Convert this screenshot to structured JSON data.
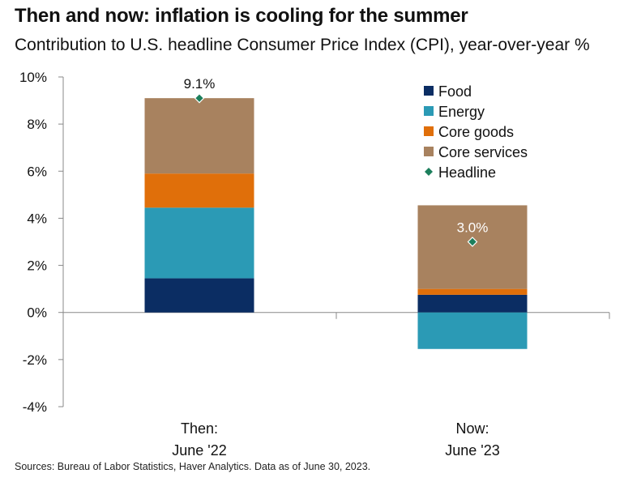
{
  "title": "Then and now: inflation is cooling for the summer",
  "subtitle": "Contribution to U.S. headline Consumer Price Index (CPI), year-over-year %",
  "source": "Sources: Bureau of Labor Statistics, Haver Analytics. Data as of June 30, 2023.",
  "chart_data": {
    "type": "bar",
    "stacked": true,
    "categories": [
      [
        "Then:",
        "June '22"
      ],
      [
        "Now:",
        "June '23"
      ]
    ],
    "series": [
      {
        "name": "Food",
        "color": "#0b2d63",
        "values": [
          1.45,
          0.75
        ]
      },
      {
        "name": "Energy",
        "color": "#2b9ab5",
        "values": [
          3.0,
          -1.55
        ]
      },
      {
        "name": "Core goods",
        "color": "#e06f0a",
        "values": [
          1.45,
          0.25
        ]
      },
      {
        "name": "Core services",
        "color": "#a8825f",
        "values": [
          3.2,
          3.55
        ]
      }
    ],
    "headline": {
      "name": "Headline",
      "color": "#1c7f5c",
      "values": [
        9.1,
        3.0
      ],
      "labels": [
        "9.1%",
        "3.0%"
      ]
    },
    "yticks": [
      10,
      8,
      6,
      4,
      2,
      0,
      -2,
      -4
    ],
    "ytick_labels": [
      "10%",
      "8%",
      "6%",
      "4%",
      "2%",
      "0%",
      "-2%",
      "-4%"
    ],
    "ylim": [
      -4,
      10
    ],
    "grid": false,
    "legend_position": "top-right"
  }
}
